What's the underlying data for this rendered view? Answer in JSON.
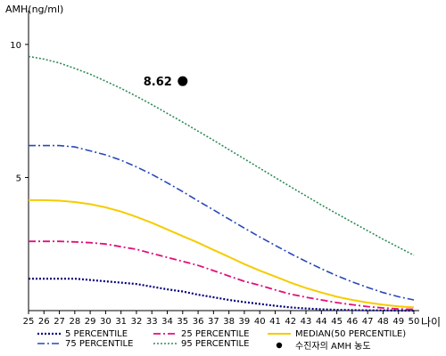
{
  "chart_data": {
    "type": "line",
    "ylabel": "AMH(ng/ml)",
    "xlabel": "나이",
    "x": [
      25,
      26,
      27,
      28,
      29,
      30,
      31,
      32,
      33,
      34,
      35,
      36,
      37,
      38,
      39,
      40,
      41,
      42,
      43,
      44,
      45,
      46,
      47,
      48,
      49,
      50
    ],
    "xlim": [
      25,
      50
    ],
    "ylim": [
      0,
      11
    ],
    "yticks": [
      5,
      10
    ],
    "grid": false,
    "legend_position": "bottom",
    "series": [
      {
        "name": "5 PERCENTILE",
        "color": "#000080",
        "dash": "2,2",
        "width": 2.2,
        "values": [
          1.2,
          1.2,
          1.2,
          1.2,
          1.15,
          1.1,
          1.05,
          1.0,
          0.9,
          0.8,
          0.72,
          0.6,
          0.5,
          0.4,
          0.32,
          0.25,
          0.18,
          0.12,
          0.08,
          0.05,
          0.03,
          0.02,
          0.01,
          0.01,
          0.0,
          0.0
        ]
      },
      {
        "name": "25 PERCENTILE",
        "color": "#e0107a",
        "dash": "8,3,2,3",
        "width": 1.8,
        "values": [
          2.6,
          2.6,
          2.6,
          2.58,
          2.55,
          2.5,
          2.4,
          2.3,
          2.15,
          2.0,
          1.85,
          1.7,
          1.5,
          1.3,
          1.1,
          0.95,
          0.78,
          0.62,
          0.5,
          0.4,
          0.3,
          0.22,
          0.15,
          0.1,
          0.06,
          0.05
        ]
      },
      {
        "name": "MEDIAN(50 PERCENTILE)",
        "color": "#f5cc00",
        "dash": "",
        "width": 2.0,
        "values": [
          4.15,
          4.15,
          4.13,
          4.08,
          4.0,
          3.88,
          3.72,
          3.52,
          3.3,
          3.05,
          2.8,
          2.55,
          2.28,
          2.02,
          1.75,
          1.5,
          1.28,
          1.05,
          0.85,
          0.68,
          0.52,
          0.4,
          0.3,
          0.22,
          0.16,
          0.12
        ]
      },
      {
        "name": "75 PERCENTILE",
        "color": "#2748b8",
        "dash": "8,3,2,3",
        "width": 1.6,
        "values": [
          6.2,
          6.2,
          6.2,
          6.15,
          6.0,
          5.85,
          5.65,
          5.4,
          5.12,
          4.8,
          4.47,
          4.12,
          3.78,
          3.44,
          3.1,
          2.77,
          2.45,
          2.14,
          1.85,
          1.57,
          1.31,
          1.08,
          0.87,
          0.68,
          0.52,
          0.4
        ]
      },
      {
        "name": "95 PERCENTILE",
        "color": "#2e8b57",
        "dash": "2,2",
        "width": 1.6,
        "values": [
          9.55,
          9.45,
          9.3,
          9.1,
          8.88,
          8.62,
          8.35,
          8.05,
          7.74,
          7.41,
          7.08,
          6.74,
          6.4,
          6.05,
          5.7,
          5.35,
          5.0,
          4.65,
          4.31,
          3.97,
          3.64,
          3.32,
          3.0,
          2.68,
          2.38,
          2.08
        ]
      }
    ],
    "marker": {
      "name": "수진자의 AMH 농도",
      "x": 35,
      "y": 8.62,
      "label": "8.62",
      "color": "#000000"
    }
  }
}
